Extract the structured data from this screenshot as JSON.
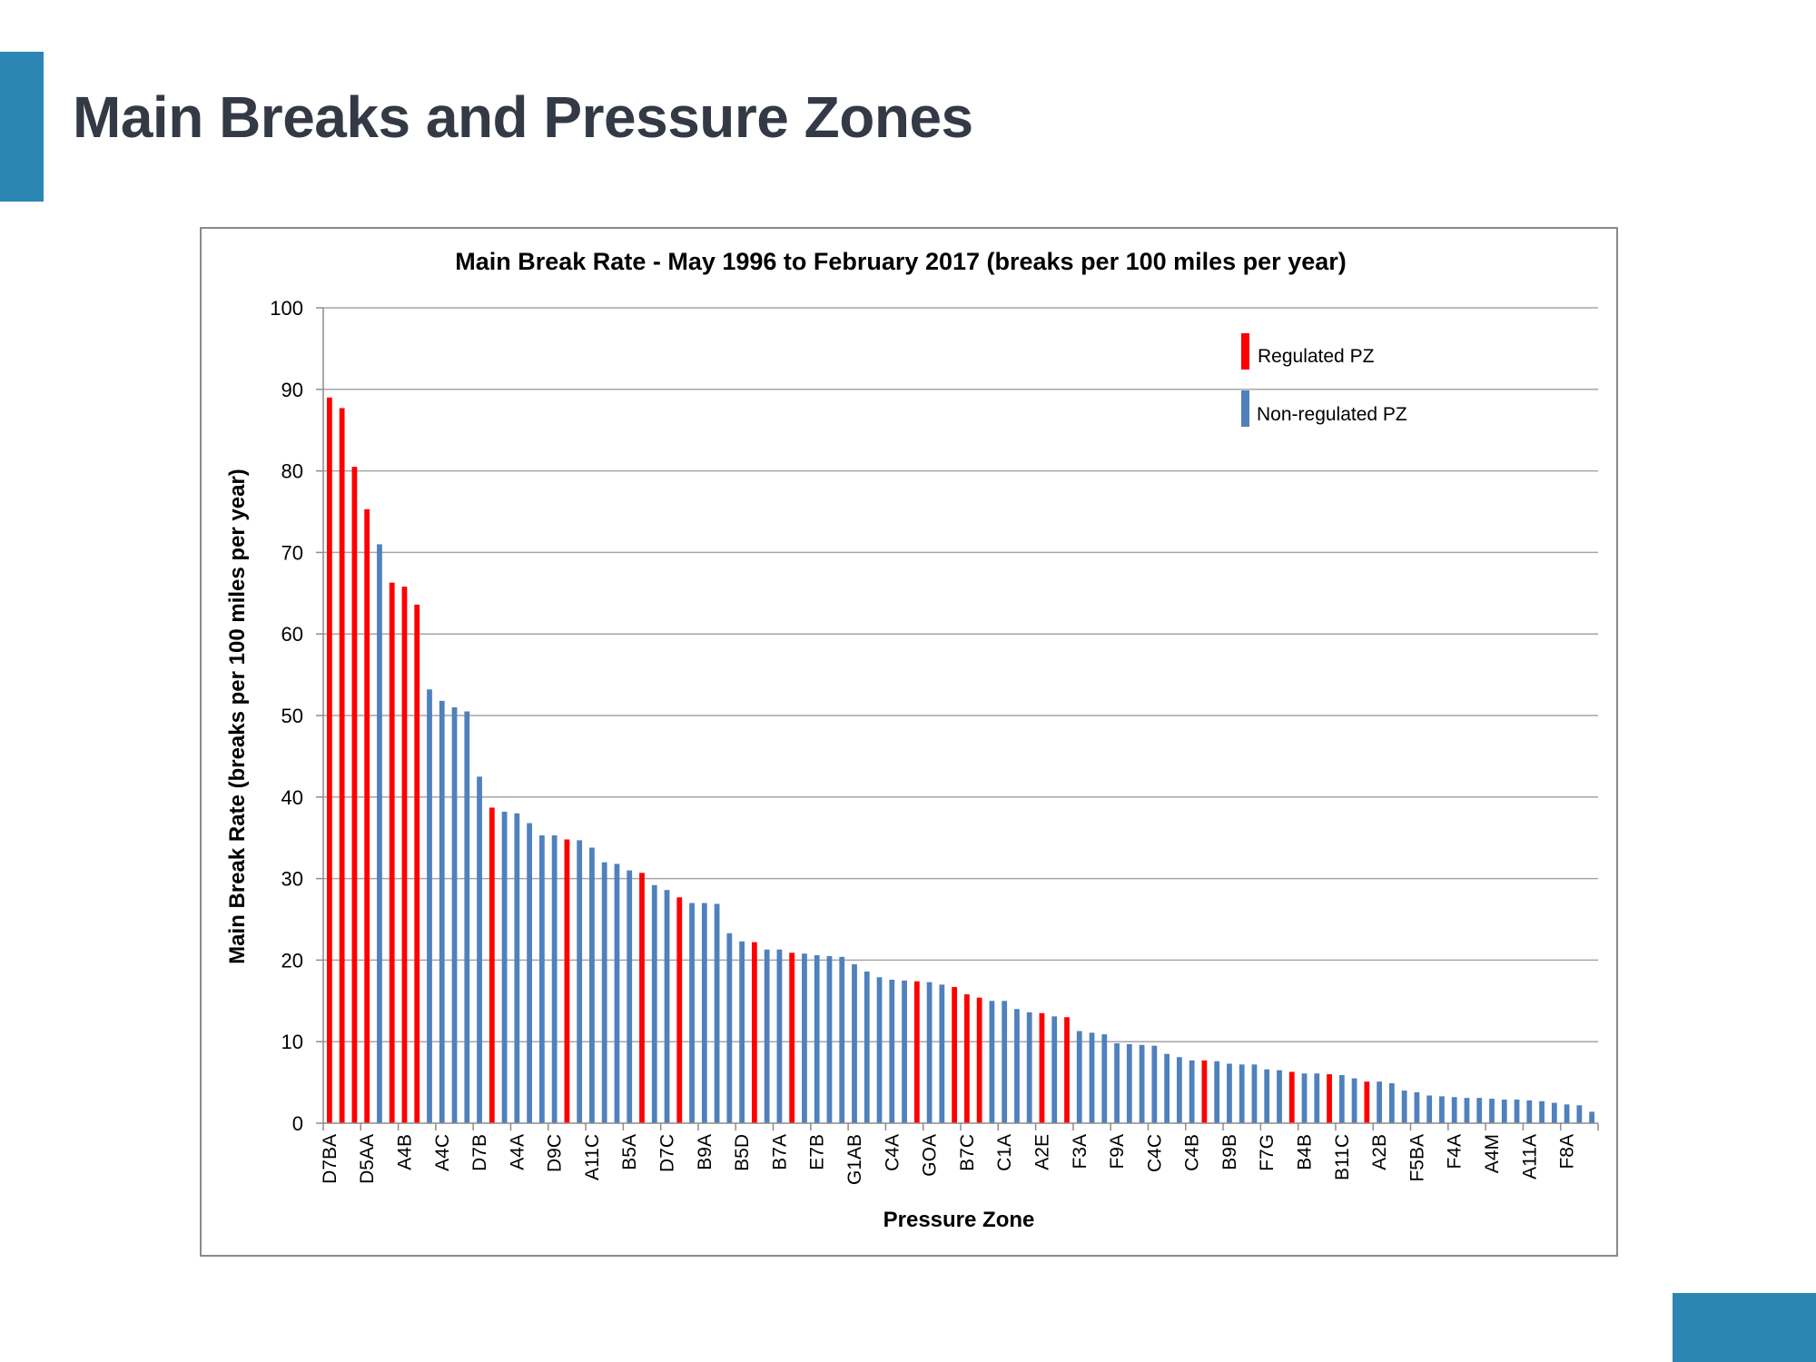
{
  "page": {
    "title": "Main Breaks and Pressure Zones",
    "accent_color": "#2b86b3"
  },
  "chart_data": {
    "type": "bar",
    "title": "Main Break Rate - May 1996 to February 2017 (breaks per 100 miles per year)",
    "xlabel": "Pressure Zone",
    "ylabel": "Main Break Rate (breaks per 100 miles per year)",
    "ylim": [
      0,
      100
    ],
    "yticks": [
      0,
      10,
      20,
      30,
      40,
      50,
      60,
      70,
      80,
      90,
      100
    ],
    "grid": true,
    "legend_position": "top-right",
    "legend": [
      {
        "key": "regulated",
        "label": "Regulated PZ",
        "color": "#ff0000"
      },
      {
        "key": "nonregulated",
        "label": "Non-regulated PZ",
        "color": "#4f81bd"
      }
    ],
    "category_labels": [
      "D7BA",
      "D5AA",
      "A4B",
      "A4C",
      "D7B",
      "A4A",
      "D9C",
      "A11C",
      "B5A",
      "D7C",
      "B9A",
      "B5D",
      "B7A",
      "E7B",
      "G1AB",
      "C4A",
      "GOA",
      "B7C",
      "C1A",
      "A2E",
      "F3A",
      "F9A",
      "C4C",
      "C4B",
      "B9B",
      "F7G",
      "B4B",
      "B11C",
      "A2B",
      "F5BA",
      "F4A",
      "A4M",
      "A11A",
      "F8A"
    ],
    "values": [
      89,
      87.7,
      80.5,
      75.3,
      71,
      66.3,
      65.8,
      63.6,
      53.2,
      51.8,
      51,
      50.5,
      42.5,
      38.7,
      38.2,
      38,
      36.8,
      35.3,
      35.3,
      34.8,
      34.7,
      33.8,
      32,
      31.8,
      31,
      30.7,
      29.2,
      28.6,
      27.7,
      27,
      27,
      26.9,
      23.3,
      22.3,
      22.2,
      21.3,
      21.3,
      20.9,
      20.8,
      20.6,
      20.5,
      20.4,
      19.5,
      18.6,
      17.9,
      17.6,
      17.5,
      17.4,
      17.3,
      17,
      16.7,
      15.8,
      15.4,
      15,
      15,
      14,
      13.6,
      13.5,
      13.1,
      13,
      11.3,
      11.1,
      10.9,
      9.8,
      9.7,
      9.6,
      9.5,
      8.5,
      8.1,
      7.7,
      7.7,
      7.6,
      7.3,
      7.2,
      7.2,
      6.6,
      6.5,
      6.3,
      6.1,
      6.1,
      6,
      5.9,
      5.5,
      5.1,
      5.1,
      4.9,
      4,
      3.8,
      3.4,
      3.3,
      3.2,
      3.1,
      3.1,
      3,
      2.9,
      2.9,
      2.8,
      2.7,
      2.5,
      2.3,
      2.2,
      1.4
    ],
    "regulated": [
      true,
      true,
      true,
      true,
      false,
      true,
      true,
      true,
      false,
      false,
      false,
      false,
      false,
      true,
      false,
      false,
      false,
      false,
      false,
      true,
      false,
      false,
      false,
      false,
      false,
      true,
      false,
      false,
      true,
      false,
      false,
      false,
      false,
      false,
      true,
      false,
      false,
      true,
      false,
      false,
      false,
      false,
      false,
      false,
      false,
      false,
      false,
      true,
      false,
      false,
      true,
      true,
      true,
      false,
      false,
      false,
      false,
      true,
      false,
      true,
      false,
      false,
      false,
      false,
      false,
      false,
      false,
      false,
      false,
      false,
      true,
      false,
      false,
      false,
      false,
      false,
      false,
      true,
      false,
      false,
      true,
      false,
      false,
      true,
      false,
      false,
      false,
      false,
      false,
      false,
      false,
      false,
      false,
      false,
      false,
      false,
      false,
      false,
      false,
      false,
      false,
      false
    ]
  }
}
